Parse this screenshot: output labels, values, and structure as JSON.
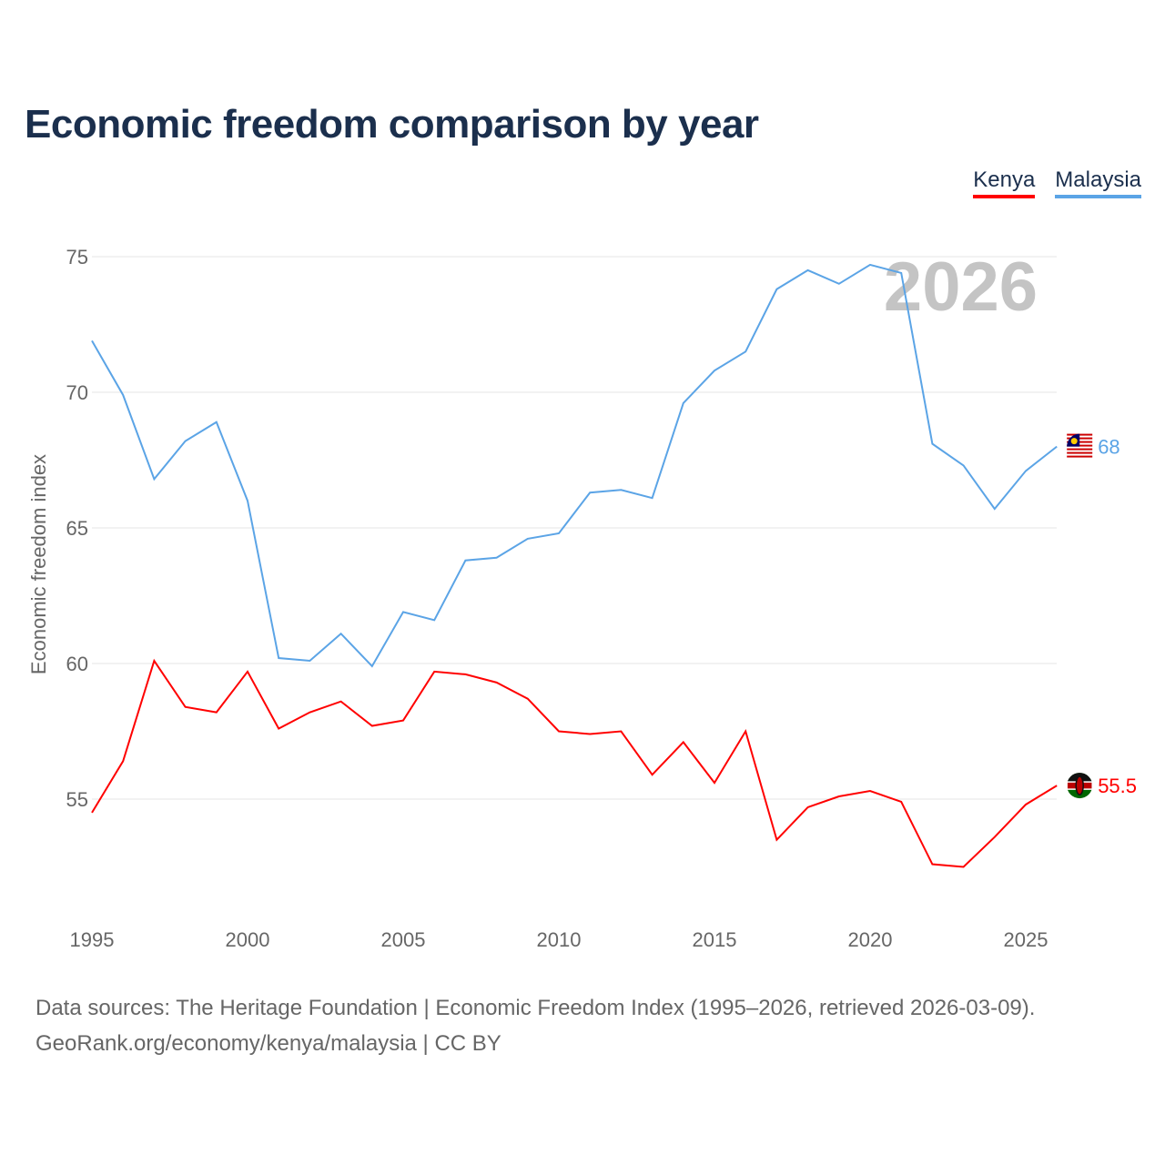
{
  "title": "Economic freedom comparison by year",
  "footer": {
    "line1": "Data sources: The Heritage Foundation | Economic Freedom Index (1995–2026, retrieved 2026-03-09).",
    "line2": "GeoRank.org/economy/kenya/malaysia | CC BY"
  },
  "chart_data": {
    "type": "line",
    "title": "Economic freedom comparison by year",
    "ylabel": "Economic freedom index",
    "xlabel": "",
    "year_label": "2026",
    "x": [
      1995,
      1996,
      1997,
      1998,
      1999,
      2000,
      2001,
      2002,
      2003,
      2004,
      2005,
      2006,
      2007,
      2008,
      2009,
      2010,
      2011,
      2012,
      2013,
      2014,
      2015,
      2016,
      2017,
      2018,
      2019,
      2020,
      2021,
      2022,
      2023,
      2024,
      2025,
      2026
    ],
    "xticks": [
      "1995",
      "2000",
      "2005",
      "2010",
      "2015",
      "2020",
      "2025"
    ],
    "yticks": [
      "55",
      "60",
      "65",
      "70",
      "75"
    ],
    "ylim": [
      51.2,
      75
    ],
    "xlim": [
      1995,
      2026
    ],
    "grid": true,
    "legend_placement": "top-right",
    "series": [
      {
        "name": "Kenya",
        "color": "#ff0000",
        "end_label": "55.5",
        "values": [
          54.5,
          56.4,
          60.1,
          58.4,
          58.2,
          59.7,
          57.6,
          58.2,
          58.6,
          57.7,
          57.9,
          59.7,
          59.6,
          59.3,
          58.7,
          57.5,
          57.4,
          57.5,
          55.9,
          57.1,
          55.6,
          57.5,
          53.5,
          54.7,
          55.1,
          55.3,
          54.9,
          52.6,
          52.5,
          53.6,
          54.8,
          55.5
        ]
      },
      {
        "name": "Malaysia",
        "color": "#5ba4e6",
        "end_label": "68",
        "values": [
          71.9,
          69.9,
          66.8,
          68.2,
          68.9,
          66.0,
          60.2,
          60.1,
          61.1,
          59.9,
          61.9,
          61.6,
          63.8,
          63.9,
          64.6,
          64.8,
          66.3,
          66.4,
          66.1,
          69.6,
          70.8,
          71.5,
          73.8,
          74.5,
          74.0,
          74.7,
          74.4,
          68.1,
          67.3,
          65.7,
          67.1,
          68.0
        ]
      }
    ]
  }
}
